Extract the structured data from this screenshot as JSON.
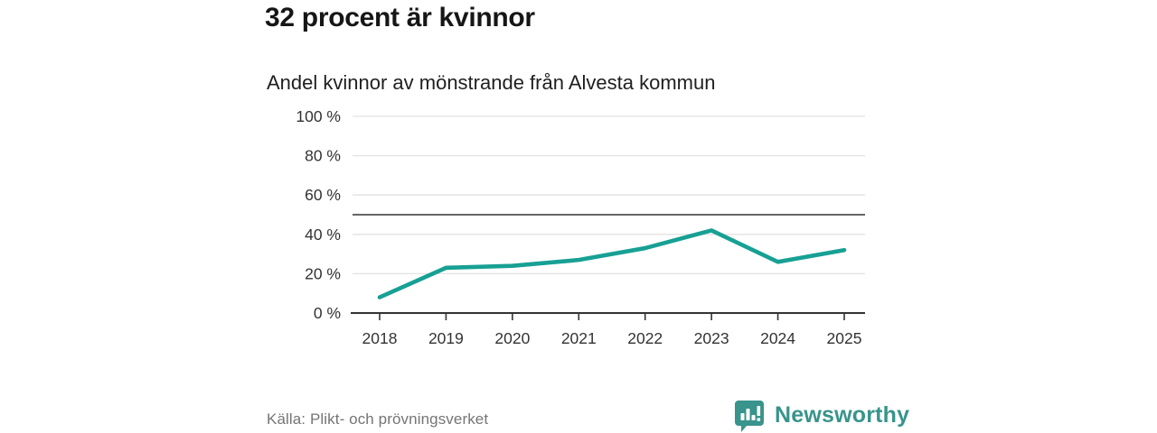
{
  "header": {
    "title": "32 procent är kvinnor",
    "subtitle": "Andel kvinnor av mönstrande från Alvesta kommun"
  },
  "footer": {
    "source": "Källa: Plikt- och prövningsverket",
    "brand_name": "Newsworthy"
  },
  "icons": {
    "logo": "newsworthy-bar-chart-bubble-icon"
  },
  "colors": {
    "line": "#17a094",
    "grid": "#e2e2e2",
    "reference_line": "#4f4f4f",
    "axis": "#333333",
    "tick_text": "#333333",
    "title_text": "#161616",
    "source_text": "#757575",
    "brand_teal": "#38948c",
    "background": "#ffffff"
  },
  "chart_data": {
    "type": "line",
    "title": "32 procent är kvinnor",
    "subtitle": "Andel kvinnor av mönstrande från Alvesta kommun",
    "x": [
      2018,
      2019,
      2020,
      2021,
      2022,
      2023,
      2024,
      2025
    ],
    "series": [
      {
        "name": "Andel kvinnor",
        "values": [
          8,
          23,
          24,
          27,
          33,
          42,
          26,
          32
        ],
        "color": "#17a094"
      }
    ],
    "xlabel": "",
    "ylabel": "",
    "ylim": [
      0,
      100
    ],
    "yticks": [
      0,
      20,
      40,
      60,
      80,
      100
    ],
    "ytick_format": "{v} %",
    "reference_line": 50,
    "grid": true,
    "legend": false,
    "source": "Källa: Plikt- och prövningsverket"
  }
}
